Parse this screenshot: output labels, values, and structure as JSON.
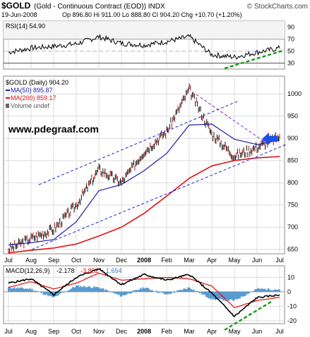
{
  "header": {
    "symbol": "$GOLD",
    "description": "(Gold - Continuous Contract (EOD)) INDX",
    "copyright": "© StockCharts.com",
    "date": "19-Jun-2008",
    "quote": "Op 896.80 Hi 911.00 Lo 888.80 Cl 904.20 Chg +10.70 (+1.20%)",
    "quote_change_color": "#008000"
  },
  "watermark": "www.pdegraaf.com",
  "colors": {
    "price": "#000000",
    "ma50": "#1c1ca8",
    "ma200": "#e01010",
    "channel": "#2020d0",
    "downtrend": "#8020c0",
    "support_arrow": "#1e50e8",
    "green_dashed": "#1a9a1a",
    "macd_line": "#000000",
    "signal_line": "#e01010",
    "histogram": "#5a9ad0"
  },
  "legend": {
    "rsi": "RSI(14) 54.90",
    "price_title": "$GOLD (Daily) 904.20",
    "ma50": "MA(50) 895.87",
    "ma200": "MA(200) 859.17",
    "volume": "Volume undef"
  },
  "macd_legend": {
    "label": "MACD(12,26,9)",
    "macd": "-2.178",
    "signal": "-3.832",
    "hist": "1.654"
  },
  "x_labels": [
    "Jul",
    "Aug",
    "Sep",
    "Oct",
    "Nov",
    "Dec",
    "2008",
    "Feb",
    "Mar",
    "Apr",
    "May",
    "Jun",
    "Jul"
  ],
  "chart_data": [
    {
      "type": "line",
      "name": "RSI",
      "title": "RSI(14) 54.90",
      "yticks": [
        30,
        50,
        70,
        90
      ],
      "ylim": [
        20,
        100
      ],
      "overbought": 70,
      "oversold": 30,
      "x": [
        "Jul",
        "Aug",
        "Sep",
        "Oct",
        "Nov",
        "Dec",
        "2008",
        "Feb",
        "Mar",
        "Apr",
        "May",
        "Jun",
        "Jul"
      ],
      "values": [
        48,
        55,
        58,
        62,
        74,
        63,
        60,
        66,
        74,
        44,
        40,
        48,
        55
      ],
      "last": 54.9
    },
    {
      "type": "line",
      "name": "Price",
      "title": "$GOLD (Daily) 904.20",
      "yticks": [
        650,
        700,
        750,
        800,
        850,
        900,
        950,
        1000
      ],
      "ylim": [
        640,
        1040
      ],
      "x": [
        "Jul",
        "Aug",
        "Sep",
        "Oct",
        "Nov",
        "Dec",
        "2008",
        "Feb",
        "Mar",
        "Apr",
        "May",
        "Jun",
        "Jul"
      ],
      "series": [
        {
          "name": "$GOLD",
          "values": [
            650,
            675,
            695,
            750,
            830,
            800,
            870,
            915,
            1010,
            910,
            860,
            880,
            904
          ]
        },
        {
          "name": "MA(50)",
          "values": [
            660,
            665,
            672,
            712,
            782,
            796,
            827,
            866,
            930,
            932,
            898,
            886,
            896
          ]
        },
        {
          "name": "MA(200)",
          "values": [
            642,
            648,
            653,
            662,
            680,
            700,
            731,
            770,
            810,
            838,
            850,
            856,
            859
          ]
        }
      ]
    },
    {
      "type": "line",
      "name": "MACD",
      "title": "MACD(12,26,9) -2.178, -3.832, 1.654",
      "yticks": [
        -20,
        -10,
        0,
        10
      ],
      "ylim": [
        -22,
        18
      ],
      "x": [
        "Jul",
        "Aug",
        "Sep",
        "Oct",
        "Nov",
        "Dec",
        "2008",
        "Feb",
        "Mar",
        "Apr",
        "May",
        "Jun",
        "Jul"
      ],
      "series": [
        {
          "name": "MACD",
          "values": [
            6,
            9,
            -2,
            10,
            16,
            5,
            12,
            8,
            12,
            -1,
            -17,
            -4,
            -2.178
          ]
        },
        {
          "name": "Signal",
          "values": [
            3,
            7,
            2,
            6,
            13,
            8,
            9,
            10,
            9,
            4,
            -11,
            -6,
            -3.832
          ]
        },
        {
          "name": "Histogram",
          "values": [
            3,
            2,
            -4,
            4,
            3,
            -3,
            3,
            -2,
            3,
            -5,
            -6,
            2,
            1.654
          ]
        }
      ]
    }
  ]
}
